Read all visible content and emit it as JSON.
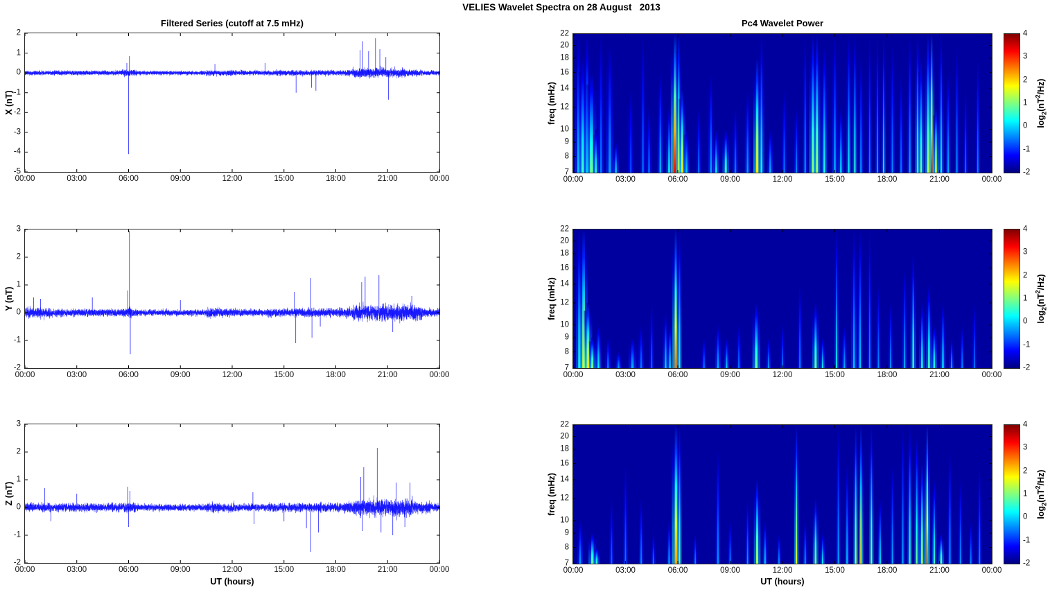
{
  "figure": {
    "title": "VELIES Wavelet Spectra on 28 August   2013",
    "background": "#ffffff",
    "line_color": "#0000ff",
    "colormap": "jet"
  },
  "left_column": {
    "title": "Filtered Series (cutoff at 7.5 mHz)",
    "xlabel": "UT (hours)"
  },
  "right_column": {
    "title": "Pc4 Wavelet Power",
    "xlabel": "UT (hours)",
    "ylabel": "freq (mHz)"
  },
  "colorbar": {
    "label_prefix": "log",
    "label_sub": "2",
    "label_mid": "(nT",
    "label_sup": "2",
    "label_suffix": "/Hz)",
    "ticks": [
      4,
      3,
      2,
      1,
      0,
      -1,
      -2
    ],
    "vmin": -2,
    "vmax": 4
  },
  "time_axis": {
    "labels": [
      "00:00",
      "03:00",
      "06:00",
      "09:00",
      "12:00",
      "15:00",
      "18:00",
      "21:00",
      "00:00"
    ],
    "hours": [
      0,
      3,
      6,
      9,
      12,
      15,
      18,
      21,
      24
    ],
    "range_hours": [
      0,
      24
    ]
  },
  "chart_data": [
    {
      "type": "line",
      "id": "timeseries-x",
      "ylabel": "X (nT)",
      "ylim": [
        -5,
        2
      ],
      "yticks": [
        2,
        1,
        0,
        -1,
        -2,
        -3,
        -4,
        -5
      ],
      "color": "#0000ff",
      "grid": false,
      "noise_envelope": [
        [
          0,
          5.5,
          0.1
        ],
        [
          5.5,
          6.5,
          0.14
        ],
        [
          6.5,
          10.5,
          0.09
        ],
        [
          10.5,
          12,
          0.12
        ],
        [
          12,
          14.5,
          0.1
        ],
        [
          14.5,
          18,
          0.12
        ],
        [
          18,
          19,
          0.13
        ],
        [
          19,
          22,
          0.22
        ],
        [
          22,
          23,
          0.15
        ],
        [
          23,
          24.01,
          0.1
        ]
      ],
      "spikes": [
        [
          5.9,
          0.5
        ],
        [
          6.0,
          -4.1
        ],
        [
          6.05,
          0.85
        ],
        [
          11.0,
          0.45
        ],
        [
          13.9,
          0.5
        ],
        [
          15.7,
          -1.0
        ],
        [
          16.6,
          -0.75
        ],
        [
          16.85,
          -0.9
        ],
        [
          19.4,
          1.15
        ],
        [
          19.55,
          1.6
        ],
        [
          19.9,
          1.1
        ],
        [
          20.3,
          1.75
        ],
        [
          20.55,
          1.2
        ],
        [
          20.9,
          0.8
        ],
        [
          21.05,
          -1.35
        ]
      ]
    },
    {
      "type": "line",
      "id": "timeseries-y",
      "ylabel": "Y (nT)",
      "ylim": [
        -2,
        3
      ],
      "yticks": [
        3,
        2,
        1,
        0,
        -1,
        -2
      ],
      "color": "#0000ff",
      "grid": false,
      "noise_envelope": [
        [
          0,
          1.5,
          0.17
        ],
        [
          1.5,
          5.7,
          0.12
        ],
        [
          5.7,
          6.3,
          0.16
        ],
        [
          6.3,
          10.5,
          0.1
        ],
        [
          10.5,
          12.2,
          0.15
        ],
        [
          12.2,
          14,
          0.11
        ],
        [
          14,
          16,
          0.13
        ],
        [
          16,
          18.5,
          0.14
        ],
        [
          18.5,
          19,
          0.16
        ],
        [
          19,
          23,
          0.27
        ],
        [
          23,
          24.01,
          0.14
        ]
      ],
      "spikes": [
        [
          0.5,
          0.55
        ],
        [
          0.9,
          0.5
        ],
        [
          3.9,
          0.55
        ],
        [
          5.95,
          0.8
        ],
        [
          6.05,
          2.95
        ],
        [
          6.1,
          -1.5
        ],
        [
          9.0,
          0.45
        ],
        [
          15.6,
          0.75
        ],
        [
          15.68,
          -1.1
        ],
        [
          16.55,
          1.25
        ],
        [
          16.62,
          -0.9
        ],
        [
          17.1,
          -0.5
        ],
        [
          19.5,
          1.1
        ],
        [
          19.7,
          1.3
        ],
        [
          20.5,
          1.35
        ],
        [
          21.3,
          -0.7
        ],
        [
          22.4,
          0.6
        ]
      ]
    },
    {
      "type": "line",
      "id": "timeseries-z",
      "ylabel": "Z (nT)",
      "ylim": [
        -2,
        3
      ],
      "yticks": [
        3,
        2,
        1,
        0,
        -1,
        -2
      ],
      "color": "#0000ff",
      "grid": false,
      "noise_envelope": [
        [
          0,
          5.7,
          0.13
        ],
        [
          5.7,
          6.4,
          0.17
        ],
        [
          6.4,
          10.5,
          0.11
        ],
        [
          10.5,
          12.2,
          0.16
        ],
        [
          12.2,
          14,
          0.12
        ],
        [
          14,
          17,
          0.14
        ],
        [
          17,
          18.5,
          0.15
        ],
        [
          18.5,
          19,
          0.18
        ],
        [
          19,
          22.5,
          0.28
        ],
        [
          22.5,
          23.5,
          0.18
        ],
        [
          23.5,
          24.01,
          0.12
        ]
      ],
      "spikes": [
        [
          1.15,
          0.7
        ],
        [
          1.5,
          -0.5
        ],
        [
          3.0,
          0.5
        ],
        [
          5.95,
          0.75
        ],
        [
          6.0,
          -0.7
        ],
        [
          6.08,
          0.6
        ],
        [
          13.2,
          0.55
        ],
        [
          13.27,
          -0.6
        ],
        [
          15.0,
          -0.5
        ],
        [
          16.3,
          -0.75
        ],
        [
          16.55,
          -1.6
        ],
        [
          17.0,
          -0.9
        ],
        [
          19.45,
          1.1
        ],
        [
          19.55,
          -0.85
        ],
        [
          19.62,
          1.45
        ],
        [
          20.4,
          2.15
        ],
        [
          20.62,
          -0.9
        ],
        [
          21.3,
          -1.0
        ],
        [
          21.5,
          0.9
        ],
        [
          22.0,
          -0.7
        ],
        [
          22.3,
          0.9
        ]
      ]
    },
    {
      "type": "heatmap",
      "id": "wavelet-x",
      "ylabel": "freq (mHz)",
      "yscale": "log",
      "ylim": [
        7,
        22
      ],
      "yticks": [
        22,
        20,
        18,
        16,
        14,
        12,
        10,
        9,
        8,
        7
      ],
      "clim": [
        -2,
        4
      ],
      "colormap": "jet",
      "streaks_format": [
        "time_hours",
        "top_freq_mhz",
        "peak_log2_power",
        "width_hours"
      ],
      "streaks": [
        [
          0.3,
          22,
          0.0,
          0.12
        ],
        [
          0.55,
          18,
          0.6,
          0.15
        ],
        [
          0.8,
          22,
          0.3,
          0.12
        ],
        [
          1.05,
          16,
          0.9,
          0.18
        ],
        [
          1.3,
          10,
          0.5,
          0.1
        ],
        [
          1.6,
          22,
          -0.5,
          0.1
        ],
        [
          2.1,
          20,
          -0.3,
          0.14
        ],
        [
          2.45,
          9,
          0.0,
          0.1
        ],
        [
          3.3,
          14,
          -0.8,
          0.1
        ],
        [
          4.0,
          22,
          -0.5,
          0.08
        ],
        [
          4.35,
          12,
          -0.6,
          0.1
        ],
        [
          5.0,
          16,
          -0.2,
          0.1
        ],
        [
          5.5,
          12,
          0.3,
          0.1
        ],
        [
          5.85,
          22,
          3.3,
          0.16
        ],
        [
          6.05,
          22,
          1.4,
          0.1
        ],
        [
          6.25,
          14,
          1.9,
          0.12
        ],
        [
          6.5,
          10,
          0.0,
          0.1
        ],
        [
          7.2,
          12,
          -0.5,
          0.08
        ],
        [
          7.9,
          16,
          -0.3,
          0.1
        ],
        [
          8.2,
          10,
          0.2,
          0.1
        ],
        [
          8.75,
          10,
          0.6,
          0.12
        ],
        [
          9.3,
          12,
          -0.5,
          0.1
        ],
        [
          10.0,
          14,
          -0.3,
          0.1
        ],
        [
          10.55,
          18,
          1.9,
          0.14
        ],
        [
          10.8,
          22,
          0.3,
          0.1
        ],
        [
          11.3,
          10,
          -0.2,
          0.1
        ],
        [
          12.1,
          14,
          -0.5,
          0.08
        ],
        [
          12.8,
          12,
          -0.4,
          0.08
        ],
        [
          13.3,
          22,
          -0.3,
          0.08
        ],
        [
          13.75,
          22,
          1.1,
          0.14
        ],
        [
          13.98,
          22,
          1.2,
          0.12
        ],
        [
          14.4,
          20,
          0.4,
          0.1
        ],
        [
          15.0,
          22,
          -0.2,
          0.1
        ],
        [
          15.35,
          12,
          0.0,
          0.1
        ],
        [
          15.8,
          22,
          0.2,
          0.08
        ],
        [
          16.15,
          22,
          0.5,
          0.08
        ],
        [
          16.5,
          18,
          -0.3,
          0.08
        ],
        [
          17.0,
          22,
          -0.4,
          0.07
        ],
        [
          17.45,
          22,
          -0.2,
          0.07
        ],
        [
          17.8,
          22,
          0.3,
          0.07
        ],
        [
          18.3,
          20,
          -0.4,
          0.08
        ],
        [
          18.8,
          16,
          -0.5,
          0.08
        ],
        [
          19.3,
          22,
          -0.2,
          0.08
        ],
        [
          19.75,
          22,
          0.6,
          0.1
        ],
        [
          19.95,
          18,
          0.9,
          0.1
        ],
        [
          20.35,
          22,
          1.3,
          0.12
        ],
        [
          20.55,
          22,
          3.1,
          0.1
        ],
        [
          20.8,
          12,
          1.6,
          0.1
        ],
        [
          21.1,
          22,
          0.2,
          0.09
        ],
        [
          21.5,
          16,
          -0.2,
          0.08
        ],
        [
          22.0,
          20,
          -0.3,
          0.07
        ],
        [
          22.5,
          14,
          -0.5,
          0.07
        ],
        [
          23.2,
          18,
          -0.4,
          0.07
        ]
      ]
    },
    {
      "type": "heatmap",
      "id": "wavelet-y",
      "ylabel": "freq (mHz)",
      "yscale": "log",
      "ylim": [
        7,
        22
      ],
      "yticks": [
        22,
        20,
        18,
        16,
        14,
        12,
        10,
        9,
        8,
        7
      ],
      "clim": [
        -2,
        4
      ],
      "colormap": "jet",
      "streaks_format": [
        "time_hours",
        "top_freq_mhz",
        "peak_log2_power",
        "width_hours"
      ],
      "streaks": [
        [
          0.35,
          22,
          0.4,
          0.12
        ],
        [
          0.6,
          22,
          1.6,
          0.15
        ],
        [
          0.85,
          12,
          1.9,
          0.15
        ],
        [
          1.1,
          9,
          1.1,
          0.12
        ],
        [
          1.45,
          10,
          0.3,
          0.1
        ],
        [
          2.0,
          9,
          -0.5,
          0.1
        ],
        [
          2.6,
          8,
          -0.3,
          0.1
        ],
        [
          3.4,
          9,
          -0.2,
          0.14
        ],
        [
          3.9,
          10,
          -0.5,
          0.1
        ],
        [
          4.5,
          12,
          -0.6,
          0.08
        ],
        [
          5.3,
          11,
          0.0,
          0.1
        ],
        [
          5.55,
          10,
          0.3,
          0.08
        ],
        [
          5.88,
          22,
          2.6,
          0.12
        ],
        [
          6.1,
          22,
          0.5,
          0.08
        ],
        [
          7.5,
          9,
          -0.5,
          0.08
        ],
        [
          8.3,
          10,
          -0.2,
          0.1
        ],
        [
          8.8,
          9,
          0.0,
          0.08
        ],
        [
          9.5,
          10,
          -0.5,
          0.08
        ],
        [
          10.5,
          12,
          0.9,
          0.14
        ],
        [
          11.2,
          9,
          -0.3,
          0.08
        ],
        [
          12.0,
          10,
          -0.5,
          0.07
        ],
        [
          13.0,
          14,
          -0.4,
          0.08
        ],
        [
          13.9,
          12,
          0.9,
          0.12
        ],
        [
          14.3,
          9,
          0.2,
          0.08
        ],
        [
          15.1,
          22,
          0.3,
          0.07
        ],
        [
          15.55,
          10,
          -0.2,
          0.08
        ],
        [
          16.1,
          22,
          -0.1,
          0.1
        ],
        [
          16.45,
          22,
          0.0,
          0.08
        ],
        [
          17.0,
          22,
          -0.3,
          0.07
        ],
        [
          17.5,
          14,
          -0.4,
          0.07
        ],
        [
          18.2,
          12,
          -0.3,
          0.07
        ],
        [
          19.0,
          16,
          -0.2,
          0.08
        ],
        [
          19.5,
          18,
          0.6,
          0.1
        ],
        [
          20.0,
          12,
          0.4,
          0.1
        ],
        [
          20.4,
          14,
          0.7,
          0.1
        ],
        [
          20.7,
          10,
          0.5,
          0.1
        ],
        [
          21.2,
          12,
          0.2,
          0.09
        ],
        [
          21.7,
          9,
          -0.2,
          0.08
        ],
        [
          22.3,
          10,
          -0.4,
          0.07
        ],
        [
          23.0,
          12,
          -0.5,
          0.07
        ]
      ]
    },
    {
      "type": "heatmap",
      "id": "wavelet-z",
      "ylabel": "freq (mHz)",
      "yscale": "log",
      "ylim": [
        7,
        22
      ],
      "yticks": [
        22,
        20,
        18,
        16,
        14,
        12,
        10,
        9,
        8,
        7
      ],
      "clim": [
        -2,
        4
      ],
      "colormap": "jet",
      "streaks_format": [
        "time_hours",
        "top_freq_mhz",
        "peak_log2_power",
        "width_hours"
      ],
      "streaks": [
        [
          0.4,
          10,
          -0.3,
          0.1
        ],
        [
          1.1,
          9,
          0.9,
          0.14
        ],
        [
          1.35,
          8,
          0.6,
          0.1
        ],
        [
          2.2,
          12,
          -0.6,
          0.08
        ],
        [
          3.0,
          16,
          -0.5,
          0.08
        ],
        [
          3.9,
          12,
          -0.4,
          0.08
        ],
        [
          4.6,
          9,
          -0.5,
          0.08
        ],
        [
          5.5,
          10,
          -0.2,
          0.08
        ],
        [
          5.9,
          22,
          2.3,
          0.15
        ],
        [
          6.1,
          22,
          1.0,
          0.08
        ],
        [
          7.0,
          9,
          -0.4,
          0.07
        ],
        [
          8.3,
          18,
          -0.3,
          0.08
        ],
        [
          9.0,
          10,
          -0.4,
          0.07
        ],
        [
          10.0,
          12,
          -0.3,
          0.07
        ],
        [
          10.55,
          14,
          1.3,
          0.12
        ],
        [
          11.0,
          10,
          0.0,
          0.08
        ],
        [
          11.8,
          9,
          -0.3,
          0.07
        ],
        [
          12.8,
          22,
          1.6,
          0.08
        ],
        [
          13.3,
          10,
          -0.2,
          0.07
        ],
        [
          13.9,
          12,
          1.1,
          0.1
        ],
        [
          14.3,
          9,
          0.2,
          0.08
        ],
        [
          15.2,
          22,
          -0.2,
          0.07
        ],
        [
          15.7,
          16,
          0.0,
          0.07
        ],
        [
          16.2,
          22,
          1.4,
          0.08
        ],
        [
          16.5,
          22,
          2.0,
          0.08
        ],
        [
          17.1,
          22,
          1.1,
          0.08
        ],
        [
          17.6,
          12,
          0.3,
          0.07
        ],
        [
          18.3,
          16,
          -0.2,
          0.07
        ],
        [
          18.9,
          22,
          -0.2,
          0.07
        ],
        [
          19.3,
          22,
          0.6,
          0.08
        ],
        [
          19.7,
          20,
          0.9,
          0.08
        ],
        [
          20.0,
          16,
          1.3,
          0.1
        ],
        [
          20.3,
          22,
          2.7,
          0.09
        ],
        [
          20.7,
          14,
          0.6,
          0.08
        ],
        [
          21.1,
          9,
          0.9,
          0.1
        ],
        [
          21.6,
          18,
          -0.2,
          0.07
        ],
        [
          22.2,
          14,
          -0.3,
          0.07
        ],
        [
          22.8,
          10,
          -0.4,
          0.07
        ],
        [
          23.3,
          16,
          -0.4,
          0.07
        ]
      ]
    }
  ]
}
